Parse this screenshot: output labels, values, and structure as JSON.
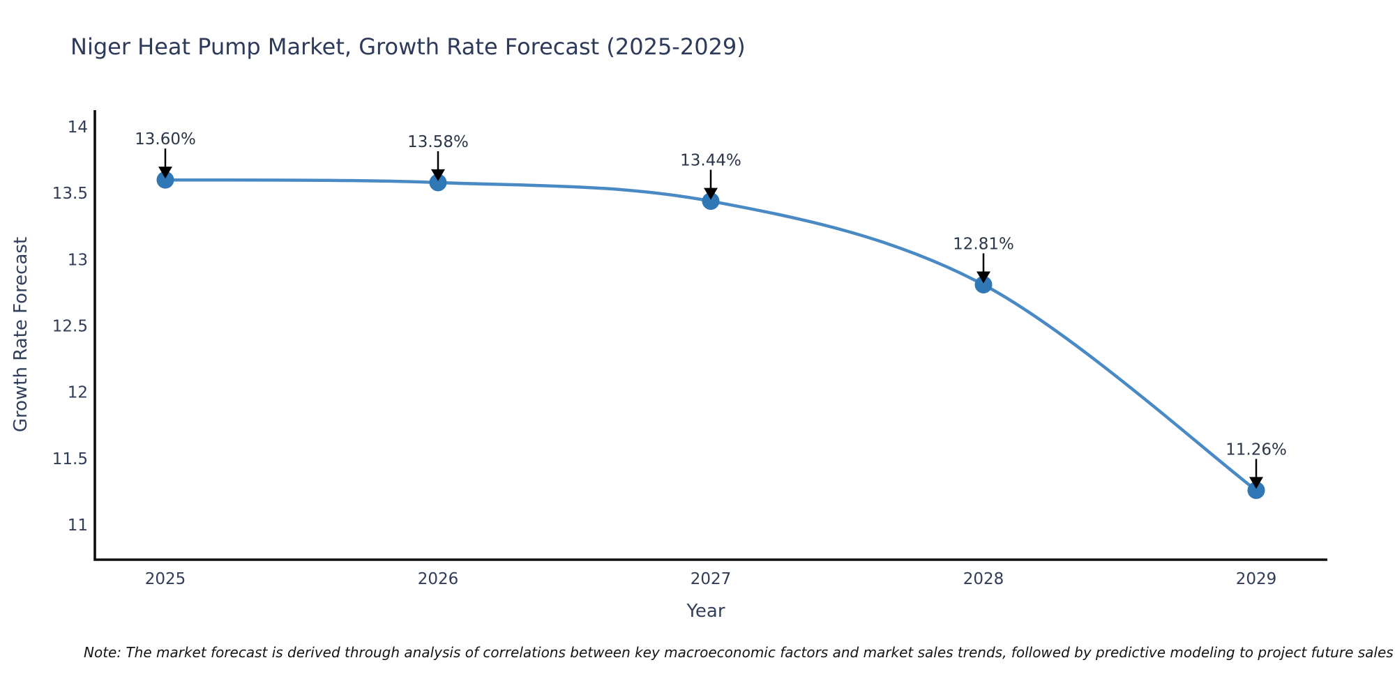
{
  "title": "Niger Heat Pump Market, Growth Rate Forecast (2025-2029)",
  "note": "Note: The market forecast is derived through analysis of correlations between key macroeconomic factors and market sales trends, followed by predictive modeling to project future sales",
  "chart_data": {
    "type": "line",
    "title": "Niger Heat Pump Market, Growth Rate Forecast (2025-2029)",
    "xlabel": "Year",
    "ylabel": "Growth Rate Forecast",
    "x": [
      2025,
      2026,
      2027,
      2028,
      2029
    ],
    "series": [
      {
        "name": "Growth Rate Forecast",
        "values": [
          13.6,
          13.58,
          13.44,
          12.81,
          11.26
        ]
      }
    ],
    "point_labels": [
      "13.60%",
      "13.58%",
      "13.44%",
      "12.81%",
      "11.26%"
    ],
    "xtick_labels": [
      "2025",
      "2026",
      "2027",
      "2028",
      "2029"
    ],
    "ytick_values": [
      14,
      13.5,
      13,
      12.5,
      12,
      11.5,
      11
    ],
    "ytick_labels": [
      "14",
      "13.5",
      "13",
      "12.5",
      "12",
      "11.5",
      "11"
    ],
    "ylim": [
      10.73,
      14.12
    ],
    "xlim": [
      2024.74,
      2029.27
    ],
    "grid": false,
    "legend_position": "none",
    "annotations": "value labels with downward black arrows above each point",
    "colors": {
      "line": "#4a8ac4",
      "marker": "#3077b5",
      "axis_spine": "#0d0d0d",
      "arrow": "#000000",
      "title_text": "#2d3a5a",
      "tick_text": "#303c58",
      "label_text": "#2b3648"
    }
  }
}
